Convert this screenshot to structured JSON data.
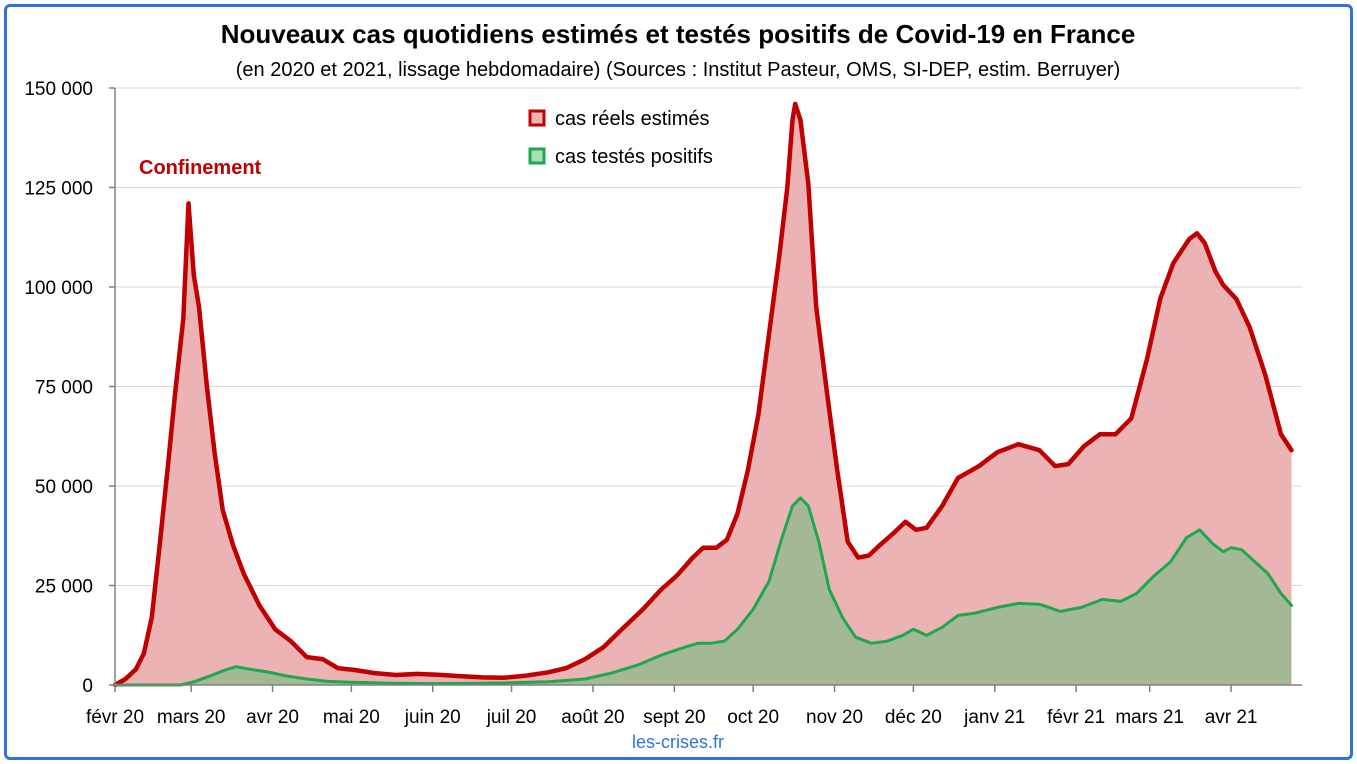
{
  "chart_data": {
    "type": "area",
    "title": "Nouveaux cas quotidiens estimés et testés positifs de Covid-19 en France",
    "subtitle": "(en 2020 et 2021, lissage hebdomadaire) (Sources : Institut Pasteur, OMS, SI-DEP, estim. Berruyer)",
    "xlabel": "",
    "ylabel": "",
    "ylim": [
      0,
      150000
    ],
    "yticks": [
      0,
      25000,
      50000,
      75000,
      100000,
      125000,
      150000
    ],
    "ytick_labels": [
      "0",
      "25 000",
      "50 000",
      "75 000",
      "100 000",
      "125 000",
      "150 000"
    ],
    "xlim": [
      "2020-02-01",
      "2021-04-28"
    ],
    "xtick_labels": [
      {
        "date": "2020-02-01",
        "label": "févr 20"
      },
      {
        "date": "2020-03-01",
        "label": "mars 20"
      },
      {
        "date": "2020-04-01",
        "label": "avr 20"
      },
      {
        "date": "2020-05-01",
        "label": "mai 20"
      },
      {
        "date": "2020-06-01",
        "label": "juin 20"
      },
      {
        "date": "2020-07-01",
        "label": "juil 20"
      },
      {
        "date": "2020-08-01",
        "label": "août 20"
      },
      {
        "date": "2020-09-01",
        "label": "sept 20"
      },
      {
        "date": "2020-10-01",
        "label": "oct 20"
      },
      {
        "date": "2020-11-01",
        "label": "nov 20"
      },
      {
        "date": "2020-12-01",
        "label": "déc 20"
      },
      {
        "date": "2021-01-01",
        "label": "janv 21"
      },
      {
        "date": "2021-02-01",
        "label": "févr 21"
      },
      {
        "date": "2021-03-01",
        "label": "mars 21"
      },
      {
        "date": "2021-04-01",
        "label": "avr 21"
      }
    ],
    "grid": true,
    "legend_position": "top-center",
    "annotation": {
      "text": "Confinement",
      "color": "#C00000"
    },
    "credit": "les-crises.fr",
    "series": [
      {
        "name": "cas réels estimés",
        "line_color": "#C00000",
        "fill_color": "#EBB3B3",
        "points": [
          [
            "2020-02-01",
            0
          ],
          [
            "2020-02-05",
            1500
          ],
          [
            "2020-02-09",
            4000
          ],
          [
            "2020-02-12",
            8000
          ],
          [
            "2020-02-15",
            17000
          ],
          [
            "2020-02-18",
            35000
          ],
          [
            "2020-02-21",
            54000
          ],
          [
            "2020-02-24",
            74000
          ],
          [
            "2020-02-27",
            92000
          ],
          [
            "2020-02-29",
            121000
          ],
          [
            "2020-03-02",
            103000
          ],
          [
            "2020-03-04",
            95000
          ],
          [
            "2020-03-07",
            75000
          ],
          [
            "2020-03-10",
            58000
          ],
          [
            "2020-03-13",
            44000
          ],
          [
            "2020-03-17",
            35000
          ],
          [
            "2020-03-21",
            28000
          ],
          [
            "2020-03-27",
            20000
          ],
          [
            "2020-04-02",
            14000
          ],
          [
            "2020-04-08",
            11000
          ],
          [
            "2020-04-14",
            7000
          ],
          [
            "2020-04-20",
            6500
          ],
          [
            "2020-04-26",
            4200
          ],
          [
            "2020-05-02",
            3800
          ],
          [
            "2020-05-10",
            3000
          ],
          [
            "2020-05-18",
            2500
          ],
          [
            "2020-05-26",
            2800
          ],
          [
            "2020-06-03",
            2600
          ],
          [
            "2020-06-12",
            2200
          ],
          [
            "2020-06-20",
            1900
          ],
          [
            "2020-06-28",
            1800
          ],
          [
            "2020-07-06",
            2300
          ],
          [
            "2020-07-15",
            3200
          ],
          [
            "2020-07-22",
            4300
          ],
          [
            "2020-07-29",
            6500
          ],
          [
            "2020-08-05",
            9500
          ],
          [
            "2020-08-12",
            14000
          ],
          [
            "2020-08-20",
            19000
          ],
          [
            "2020-08-27",
            24000
          ],
          [
            "2020-09-02",
            27500
          ],
          [
            "2020-09-08",
            32000
          ],
          [
            "2020-09-12",
            34500
          ],
          [
            "2020-09-17",
            34500
          ],
          [
            "2020-09-21",
            36500
          ],
          [
            "2020-09-25",
            43000
          ],
          [
            "2020-09-29",
            54000
          ],
          [
            "2020-10-03",
            68000
          ],
          [
            "2020-10-07",
            88000
          ],
          [
            "2020-10-11",
            108000
          ],
          [
            "2020-10-14",
            125000
          ],
          [
            "2020-10-16",
            142000
          ],
          [
            "2020-10-17",
            146000
          ],
          [
            "2020-10-19",
            142000
          ],
          [
            "2020-10-22",
            126000
          ],
          [
            "2020-10-25",
            95000
          ],
          [
            "2020-10-29",
            74000
          ],
          [
            "2020-11-02",
            54000
          ],
          [
            "2020-11-06",
            36000
          ],
          [
            "2020-11-10",
            32000
          ],
          [
            "2020-11-14",
            32500
          ],
          [
            "2020-11-18",
            35000
          ],
          [
            "2020-11-24",
            38500
          ],
          [
            "2020-11-28",
            41000
          ],
          [
            "2020-12-02",
            39000
          ],
          [
            "2020-12-06",
            39500
          ],
          [
            "2020-12-12",
            45000
          ],
          [
            "2020-12-18",
            52000
          ],
          [
            "2020-12-26",
            55000
          ],
          [
            "2021-01-02",
            58500
          ],
          [
            "2021-01-10",
            60500
          ],
          [
            "2021-01-18",
            59000
          ],
          [
            "2021-01-24",
            55000
          ],
          [
            "2021-01-29",
            55500
          ],
          [
            "2021-02-04",
            60000
          ],
          [
            "2021-02-10",
            63000
          ],
          [
            "2021-02-16",
            63000
          ],
          [
            "2021-02-22",
            67000
          ],
          [
            "2021-02-28",
            82000
          ],
          [
            "2021-03-05",
            97000
          ],
          [
            "2021-03-10",
            106000
          ],
          [
            "2021-03-16",
            112000
          ],
          [
            "2021-03-19",
            113500
          ],
          [
            "2021-03-22",
            111000
          ],
          [
            "2021-03-26",
            104000
          ],
          [
            "2021-03-29",
            100500
          ],
          [
            "2021-04-03",
            97000
          ],
          [
            "2021-04-08",
            90000
          ],
          [
            "2021-04-14",
            78000
          ],
          [
            "2021-04-20",
            63000
          ],
          [
            "2021-04-24",
            59000
          ]
        ]
      },
      {
        "name": "cas testés positifs",
        "line_color": "#1DA84F",
        "fill_color": "#A5B896",
        "points": [
          [
            "2020-02-01",
            0
          ],
          [
            "2020-02-26",
            0
          ],
          [
            "2020-03-02",
            800
          ],
          [
            "2020-03-08",
            2200
          ],
          [
            "2020-03-14",
            3800
          ],
          [
            "2020-03-18",
            4600
          ],
          [
            "2020-03-24",
            3900
          ],
          [
            "2020-03-30",
            3300
          ],
          [
            "2020-04-06",
            2300
          ],
          [
            "2020-04-14",
            1500
          ],
          [
            "2020-04-22",
            900
          ],
          [
            "2020-05-01",
            700
          ],
          [
            "2020-05-15",
            450
          ],
          [
            "2020-06-01",
            350
          ],
          [
            "2020-06-15",
            400
          ],
          [
            "2020-07-01",
            550
          ],
          [
            "2020-07-15",
            800
          ],
          [
            "2020-07-29",
            1500
          ],
          [
            "2020-08-08",
            3000
          ],
          [
            "2020-08-18",
            5000
          ],
          [
            "2020-08-27",
            7500
          ],
          [
            "2020-09-05",
            9500
          ],
          [
            "2020-09-10",
            10500
          ],
          [
            "2020-09-15",
            10500
          ],
          [
            "2020-09-20",
            11000
          ],
          [
            "2020-09-25",
            14000
          ],
          [
            "2020-10-01",
            19000
          ],
          [
            "2020-10-07",
            26000
          ],
          [
            "2020-10-12",
            37000
          ],
          [
            "2020-10-16",
            45000
          ],
          [
            "2020-10-19",
            47000
          ],
          [
            "2020-10-22",
            45000
          ],
          [
            "2020-10-26",
            36000
          ],
          [
            "2020-10-30",
            24000
          ],
          [
            "2020-11-04",
            17000
          ],
          [
            "2020-11-09",
            12000
          ],
          [
            "2020-11-15",
            10500
          ],
          [
            "2020-11-21",
            11000
          ],
          [
            "2020-11-27",
            12500
          ],
          [
            "2020-12-01",
            14000
          ],
          [
            "2020-12-06",
            12500
          ],
          [
            "2020-12-12",
            14500
          ],
          [
            "2020-12-18",
            17500
          ],
          [
            "2020-12-24",
            18000
          ],
          [
            "2021-01-02",
            19500
          ],
          [
            "2021-01-10",
            20500
          ],
          [
            "2021-01-18",
            20300
          ],
          [
            "2021-01-26",
            18500
          ],
          [
            "2021-02-03",
            19500
          ],
          [
            "2021-02-11",
            21500
          ],
          [
            "2021-02-18",
            21000
          ],
          [
            "2021-02-24",
            23000
          ],
          [
            "2021-03-02",
            27000
          ],
          [
            "2021-03-09",
            31000
          ],
          [
            "2021-03-15",
            37000
          ],
          [
            "2021-03-20",
            39000
          ],
          [
            "2021-03-25",
            35500
          ],
          [
            "2021-03-29",
            33500
          ],
          [
            "2021-04-01",
            34500
          ],
          [
            "2021-04-05",
            34000
          ],
          [
            "2021-04-10",
            31000
          ],
          [
            "2021-04-15",
            28000
          ],
          [
            "2021-04-20",
            23000
          ],
          [
            "2021-04-24",
            20000
          ]
        ]
      }
    ]
  }
}
